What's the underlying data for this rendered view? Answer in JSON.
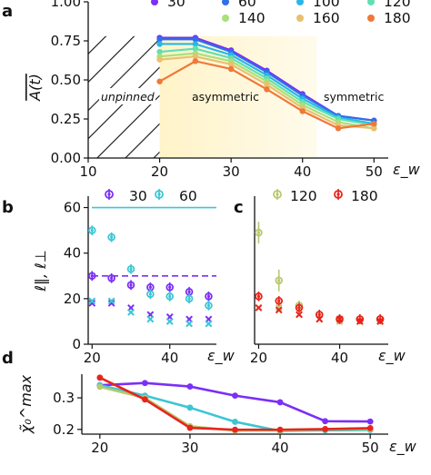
{
  "panel_labels": {
    "a": "a",
    "b": "b",
    "c": "c",
    "d": "d"
  },
  "chart_data": [
    {
      "panel": "a",
      "type": "line",
      "xlabel": "ε_w",
      "ylabel": "A(t)",
      "xlim": [
        10,
        52
      ],
      "ylim": [
        0,
        1
      ],
      "xticks": [
        "10",
        "20",
        "30",
        "40",
        "50"
      ],
      "yticks": [
        "0.00",
        "0.25",
        "0.50",
        "0.75",
        "1.00"
      ],
      "regions": [
        "unpinned",
        "asymmetric",
        "symmetric"
      ],
      "legend_position": "top",
      "x": [
        20,
        25,
        30,
        35,
        40,
        45,
        50
      ],
      "series": [
        {
          "name": "30",
          "color": "#7b2ff7",
          "values": [
            0.77,
            0.77,
            0.69,
            0.56,
            0.41,
            0.27,
            0.24
          ]
        },
        {
          "name": "60",
          "color": "#2f6fe8",
          "values": [
            0.76,
            0.76,
            0.68,
            0.55,
            0.4,
            0.27,
            0.24
          ]
        },
        {
          "name": "100",
          "color": "#29b6e8",
          "values": [
            0.73,
            0.73,
            0.66,
            0.53,
            0.38,
            0.26,
            0.22
          ]
        },
        {
          "name": "120",
          "color": "#5fe0b0",
          "values": [
            0.68,
            0.7,
            0.64,
            0.51,
            0.36,
            0.25,
            0.21
          ]
        },
        {
          "name": "140",
          "color": "#a8e07a",
          "values": [
            0.65,
            0.67,
            0.62,
            0.49,
            0.34,
            0.23,
            0.19
          ]
        },
        {
          "name": "160",
          "color": "#e8c070",
          "values": [
            0.63,
            0.65,
            0.6,
            0.47,
            0.32,
            0.21,
            0.19
          ]
        },
        {
          "name": "180",
          "color": "#f07838",
          "values": [
            0.49,
            0.62,
            0.57,
            0.44,
            0.3,
            0.19,
            0.22
          ]
        }
      ]
    },
    {
      "panel": "b",
      "type": "scatter",
      "xlabel": "ε_w",
      "ylabel": "ℓ‖, ℓ⊥",
      "xlim": [
        19,
        52
      ],
      "ylim": [
        0,
        65
      ],
      "xticks": [
        "20",
        "40"
      ],
      "yticks": [
        "0",
        "20",
        "40",
        "60"
      ],
      "x": [
        20,
        25,
        30,
        35,
        40,
        45,
        50
      ],
      "series": [
        {
          "name": "30",
          "color": "#7b2ff7",
          "asymptote": 30,
          "parallel": [
            30,
            29,
            26,
            25,
            25,
            23,
            21
          ],
          "perpendicular": [
            18,
            18,
            16,
            13,
            12,
            11,
            11
          ]
        },
        {
          "name": "60",
          "color": "#3cc6d4",
          "asymptote": 60,
          "parallel": [
            50,
            47,
            33,
            22,
            21,
            20,
            17
          ],
          "perpendicular": [
            19,
            19,
            14,
            11,
            10,
            9,
            9
          ]
        }
      ]
    },
    {
      "panel": "c",
      "type": "scatter",
      "xlabel": "ε_w",
      "xlim": [
        19,
        52
      ],
      "ylim": [
        0,
        65
      ],
      "xticks": [
        "20",
        "40"
      ],
      "x": [
        20,
        25,
        30,
        35,
        40,
        45,
        50
      ],
      "series": [
        {
          "name": "120",
          "color": "#b8c870",
          "parallel": [
            49,
            28,
            17,
            13,
            11,
            11,
            11
          ],
          "perpendicular": [
            16,
            16,
            13,
            11,
            10,
            10,
            10
          ]
        },
        {
          "name": "180",
          "color": "#e8241c",
          "parallel": [
            21,
            19,
            16,
            13,
            11,
            11,
            11
          ],
          "perpendicular": [
            16,
            15,
            13,
            11,
            11,
            10,
            10
          ]
        }
      ]
    },
    {
      "panel": "d",
      "type": "line",
      "xlabel": "ε_w",
      "ylabel": "χ̃₀^max",
      "xlim": [
        18,
        52
      ],
      "ylim": [
        0.185,
        0.375
      ],
      "xticks": [
        "20",
        "30",
        "40",
        "50"
      ],
      "yticks": [
        "0.2",
        "0.3"
      ],
      "x": [
        20,
        25,
        30,
        35,
        40,
        45,
        50
      ],
      "series": [
        {
          "name": "30",
          "color": "#7b2ff7",
          "values": [
            0.34,
            0.347,
            0.336,
            0.307,
            0.286,
            0.226,
            0.225
          ]
        },
        {
          "name": "60",
          "color": "#3cc6d4",
          "values": [
            0.34,
            0.307,
            0.269,
            0.224,
            0.195,
            0.197,
            0.198
          ]
        },
        {
          "name": "120",
          "color": "#b8c870",
          "values": [
            0.335,
            0.3,
            0.21,
            0.196,
            0.197,
            0.2,
            0.201
          ]
        },
        {
          "name": "180",
          "color": "#e8241c",
          "values": [
            0.364,
            0.295,
            0.205,
            0.199,
            0.199,
            0.201,
            0.204
          ]
        }
      ]
    }
  ]
}
